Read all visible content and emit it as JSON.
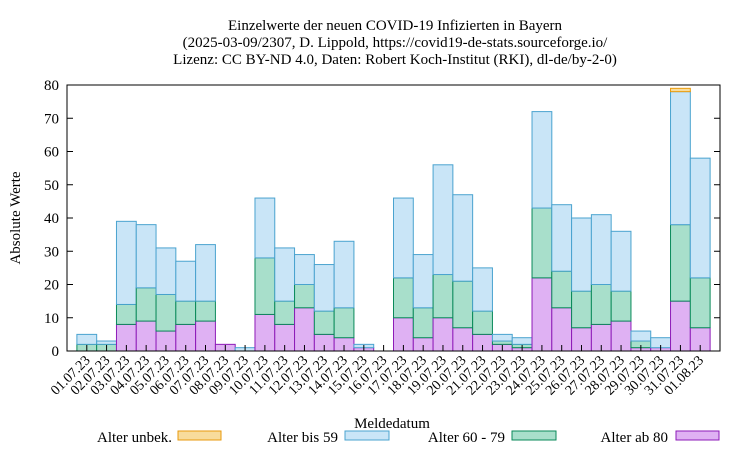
{
  "chart_data": {
    "type": "bar",
    "stacked": true,
    "title_lines": [
      "Einzelwerte der neuen COVID-19 Infizierten in Bayern",
      "(2025-03-09/2307, D. Lippold, https://covid19-de-stats.sourceforge.io/",
      "Lizenz: CC BY-ND 4.0, Daten: Robert Koch-Institut (RKI), dl-de/by-2-0)"
    ],
    "xlabel": "Meldedatum",
    "ylabel": "Absolute Werte",
    "ylim": [
      0,
      80
    ],
    "yticks": [
      0,
      10,
      20,
      30,
      40,
      50,
      60,
      70,
      80
    ],
    "grid": false,
    "legend_position": "bottom",
    "categories": [
      "01.07.23",
      "02.07.23",
      "03.07.23",
      "04.07.23",
      "05.07.23",
      "06.07.23",
      "07.07.23",
      "08.07.23",
      "09.07.23",
      "10.07.23",
      "11.07.23",
      "12.07.23",
      "13.07.23",
      "14.07.23",
      "15.07.23",
      "16.07.23",
      "17.07.23",
      "18.07.23",
      "19.07.23",
      "20.07.23",
      "21.07.23",
      "22.07.23",
      "23.07.23",
      "24.07.23",
      "25.07.23",
      "26.07.23",
      "27.07.23",
      "28.07.23",
      "29.07.23",
      "30.07.23",
      "31.07.23",
      "01.08.23"
    ],
    "series": [
      {
        "name": "Alter ab 80",
        "fill": "#dfb1f3",
        "stroke": "#8e1bb8",
        "values": [
          0,
          0,
          8,
          9,
          6,
          8,
          9,
          2,
          0,
          11,
          8,
          13,
          5,
          4,
          1,
          0,
          10,
          4,
          10,
          7,
          5,
          2,
          1,
          22,
          13,
          7,
          8,
          9,
          1,
          1,
          15,
          7
        ]
      },
      {
        "name": "Alter 60 - 79",
        "fill": "#a8dfcb",
        "stroke": "#0a8a5a",
        "values": [
          2,
          2,
          6,
          10,
          11,
          7,
          6,
          0,
          0,
          17,
          7,
          7,
          7,
          9,
          0,
          0,
          12,
          9,
          13,
          14,
          7,
          1,
          1,
          21,
          11,
          11,
          12,
          9,
          2,
          0,
          23,
          15
        ]
      },
      {
        "name": "Alter bis 59",
        "fill": "#c9e5f7",
        "stroke": "#4aa3cf",
        "values": [
          3,
          1,
          25,
          19,
          14,
          12,
          17,
          0,
          1,
          18,
          16,
          9,
          14,
          20,
          1,
          0,
          24,
          16,
          33,
          26,
          13,
          2,
          2,
          29,
          20,
          22,
          21,
          18,
          3,
          3,
          40,
          36
        ]
      },
      {
        "name": "Alter unbek.",
        "fill": "#f8dc9c",
        "stroke": "#e89a0c",
        "values": [
          0,
          0,
          0,
          0,
          0,
          0,
          0,
          0,
          0,
          0,
          0,
          0,
          0,
          0,
          0,
          0,
          0,
          0,
          0,
          0,
          0,
          0,
          0,
          0,
          0,
          0,
          0,
          0,
          0,
          0,
          1,
          0
        ]
      }
    ]
  }
}
